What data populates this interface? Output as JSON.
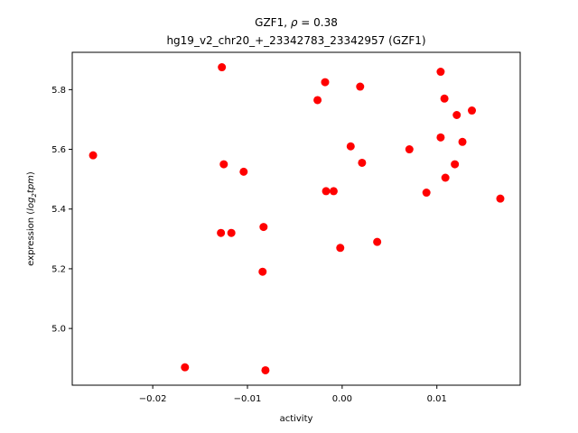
{
  "chart_data": {
    "type": "scatter",
    "title_line1_prefix": "GZF1, ",
    "title_line1_rho": "ρ",
    "title_line1_suffix": " = 0.38",
    "title_line2": "hg19_v2_chr20_+_23342783_23342957 (GZF1)",
    "xlabel": "activity",
    "ylabel_prefix": "expression (",
    "ylabel_log": "log",
    "ylabel_sub": "2",
    "ylabel_tpm": "tpm",
    "ylabel_suffix": ")",
    "xlim": [
      -0.0285,
      0.0188
    ],
    "ylim": [
      4.81,
      5.925
    ],
    "xticks": [
      -0.02,
      -0.01,
      0.0,
      0.01
    ],
    "xtick_labels": [
      "−0.02",
      "−0.01",
      "0.00",
      "0.01"
    ],
    "yticks": [
      5.0,
      5.2,
      5.4,
      5.6,
      5.8
    ],
    "ytick_labels": [
      "5.0",
      "5.2",
      "5.4",
      "5.6",
      "5.8"
    ],
    "grid": false,
    "marker_color": "#ff0000",
    "points": [
      {
        "x": -0.0263,
        "y": 5.58
      },
      {
        "x": -0.0166,
        "y": 4.87
      },
      {
        "x": -0.0127,
        "y": 5.875
      },
      {
        "x": -0.0125,
        "y": 5.55
      },
      {
        "x": -0.0128,
        "y": 5.32
      },
      {
        "x": -0.0117,
        "y": 5.32
      },
      {
        "x": -0.0104,
        "y": 5.525
      },
      {
        "x": -0.0083,
        "y": 5.34
      },
      {
        "x": -0.0084,
        "y": 5.19
      },
      {
        "x": -0.0081,
        "y": 4.86
      },
      {
        "x": -0.0026,
        "y": 5.765
      },
      {
        "x": -0.0018,
        "y": 5.825
      },
      {
        "x": -0.0017,
        "y": 5.46
      },
      {
        "x": -0.0009,
        "y": 5.46
      },
      {
        "x": -0.0002,
        "y": 5.27
      },
      {
        "x": 0.0009,
        "y": 5.61
      },
      {
        "x": 0.0019,
        "y": 5.81
      },
      {
        "x": 0.0021,
        "y": 5.555
      },
      {
        "x": 0.0037,
        "y": 5.29
      },
      {
        "x": 0.0071,
        "y": 5.6
      },
      {
        "x": 0.0089,
        "y": 5.455
      },
      {
        "x": 0.0104,
        "y": 5.86
      },
      {
        "x": 0.0104,
        "y": 5.64
      },
      {
        "x": 0.0108,
        "y": 5.77
      },
      {
        "x": 0.0109,
        "y": 5.505
      },
      {
        "x": 0.0119,
        "y": 5.55
      },
      {
        "x": 0.0121,
        "y": 5.715
      },
      {
        "x": 0.0127,
        "y": 5.625
      },
      {
        "x": 0.0137,
        "y": 5.73
      },
      {
        "x": 0.0167,
        "y": 5.435
      }
    ]
  }
}
